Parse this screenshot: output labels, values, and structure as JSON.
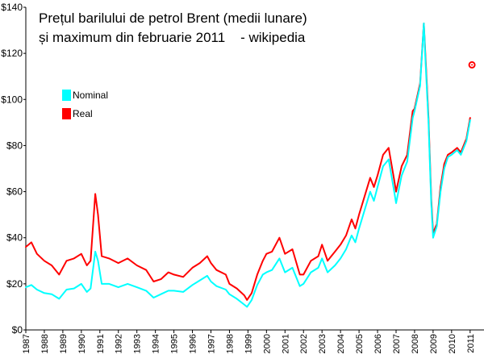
{
  "chart_data": {
    "type": "line",
    "title": "Prețul barilului de petrol Brent (medii lunare)",
    "subtitle": "și maximum din februarie 2011    - wikipedia",
    "xlabel": "",
    "ylabel": "",
    "xlim": [
      1987,
      2011.75
    ],
    "ylim": [
      0,
      140
    ],
    "y_tick_labels": [
      "$0",
      "$20",
      "$40",
      "$60",
      "$80",
      "$100",
      "$120",
      "$140"
    ],
    "x_tick_labels": [
      "1987",
      "1988",
      "1989",
      "1990",
      "1991",
      "1992",
      "1993",
      "1994",
      "1995",
      "1996",
      "1997",
      "1998",
      "1999",
      "2000",
      "2001",
      "2002",
      "2003",
      "2004",
      "2005",
      "2006",
      "2007",
      "2008",
      "2009",
      "2010",
      "2011"
    ],
    "grid": false,
    "legend": "top-left",
    "series": [
      {
        "name": "Nominal",
        "color": "#00ffff",
        "x": [
          1987.0,
          1987.3,
          1987.6,
          1988.0,
          1988.4,
          1988.8,
          1989.2,
          1989.6,
          1990.0,
          1990.3,
          1990.5,
          1990.75,
          1990.9,
          1991.1,
          1991.5,
          1992.0,
          1992.5,
          1993.0,
          1993.5,
          1993.9,
          1994.3,
          1994.7,
          1995.0,
          1995.5,
          1996.0,
          1996.4,
          1996.8,
          1997.0,
          1997.3,
          1997.8,
          1998.0,
          1998.4,
          1998.8,
          1998.95,
          1999.2,
          1999.5,
          1999.8,
          2000.0,
          2000.3,
          2000.7,
          2001.0,
          2001.4,
          2001.8,
          2002.0,
          2002.4,
          2002.8,
          2003.0,
          2003.3,
          2003.7,
          2004.0,
          2004.3,
          2004.6,
          2004.8,
          2005.0,
          2005.3,
          2005.6,
          2005.8,
          2006.0,
          2006.3,
          2006.6,
          2006.9,
          2007.0,
          2007.3,
          2007.6,
          2007.9,
          2008.0,
          2008.3,
          2008.5,
          2008.6,
          2008.75,
          2008.9,
          2009.0,
          2009.2,
          2009.4,
          2009.6,
          2009.8,
          2010.0,
          2010.3,
          2010.5,
          2010.8,
          2011.0
        ],
        "values": [
          18.5,
          19.5,
          17.5,
          16.0,
          15.5,
          13.5,
          17.5,
          18.0,
          20.0,
          16.5,
          18.0,
          34.0,
          30.0,
          20.0,
          20.0,
          18.5,
          20.0,
          18.5,
          17.0,
          14.0,
          15.5,
          17.0,
          17.0,
          16.5,
          19.5,
          21.5,
          23.5,
          21.0,
          19.0,
          17.5,
          15.5,
          13.5,
          11.0,
          10.0,
          13.0,
          19.5,
          24.0,
          25.0,
          26.0,
          31.0,
          25.0,
          27.0,
          19.0,
          20.0,
          25.0,
          27.0,
          31.0,
          25.0,
          28.0,
          31.0,
          35.0,
          41.0,
          38.0,
          44.0,
          52.0,
          60.0,
          56.0,
          62.0,
          71.0,
          74.0,
          60.0,
          55.0,
          67.0,
          73.0,
          92.0,
          95.0,
          106.0,
          133.0,
          115.0,
          90.0,
          55.0,
          40.0,
          45.0,
          60.0,
          70.0,
          75.0,
          76.0,
          78.0,
          76.0,
          82.0,
          91.0
        ]
      },
      {
        "name": "Real",
        "color": "#ff0000",
        "x": [
          1987.0,
          1987.3,
          1987.6,
          1988.0,
          1988.4,
          1988.8,
          1989.2,
          1989.6,
          1990.0,
          1990.3,
          1990.5,
          1990.75,
          1990.9,
          1991.1,
          1991.5,
          1992.0,
          1992.5,
          1993.0,
          1993.5,
          1993.9,
          1994.3,
          1994.7,
          1995.0,
          1995.5,
          1996.0,
          1996.4,
          1996.8,
          1997.0,
          1997.3,
          1997.8,
          1998.0,
          1998.4,
          1998.8,
          1998.95,
          1999.2,
          1999.5,
          1999.8,
          2000.0,
          2000.3,
          2000.7,
          2001.0,
          2001.4,
          2001.8,
          2002.0,
          2002.4,
          2002.8,
          2003.0,
          2003.3,
          2003.7,
          2004.0,
          2004.3,
          2004.6,
          2004.8,
          2005.0,
          2005.3,
          2005.6,
          2005.8,
          2006.0,
          2006.3,
          2006.6,
          2006.9,
          2007.0,
          2007.3,
          2007.6,
          2007.9,
          2008.0,
          2008.3,
          2008.5,
          2008.6,
          2008.75,
          2008.9,
          2009.0,
          2009.2,
          2009.4,
          2009.6,
          2009.8,
          2010.0,
          2010.3,
          2010.5,
          2010.8,
          2011.0
        ],
        "values": [
          36.0,
          38.0,
          33.0,
          30.0,
          28.0,
          24.0,
          30.0,
          31.0,
          33.0,
          28.0,
          30.0,
          59.0,
          50.0,
          32.0,
          31.0,
          29.0,
          31.0,
          28.0,
          26.0,
          21.0,
          22.0,
          25.0,
          24.0,
          23.0,
          27.0,
          29.0,
          32.0,
          29.0,
          26.0,
          24.0,
          20.0,
          18.0,
          15.0,
          13.0,
          16.0,
          24.0,
          30.0,
          33.0,
          34.0,
          40.0,
          33.0,
          35.0,
          24.0,
          24.0,
          30.0,
          32.0,
          37.0,
          30.0,
          34.0,
          37.0,
          41.0,
          48.0,
          44.0,
          50.0,
          58.0,
          66.0,
          62.0,
          67.0,
          76.0,
          79.0,
          65.0,
          60.0,
          71.0,
          76.0,
          95.0,
          96.0,
          107.0,
          133.0,
          117.0,
          92.0,
          57.0,
          42.0,
          46.0,
          62.0,
          72.0,
          76.0,
          77.0,
          79.0,
          77.0,
          83.0,
          92.0
        ]
      }
    ],
    "annotations": [
      {
        "type": "marker",
        "x": 2011.1,
        "y": 115,
        "color": "#ff0000"
      }
    ]
  },
  "legend": {
    "nominal_label": "Nominal",
    "real_label": "Real",
    "nominal_color": "#00ffff",
    "real_color": "#ff0000"
  }
}
